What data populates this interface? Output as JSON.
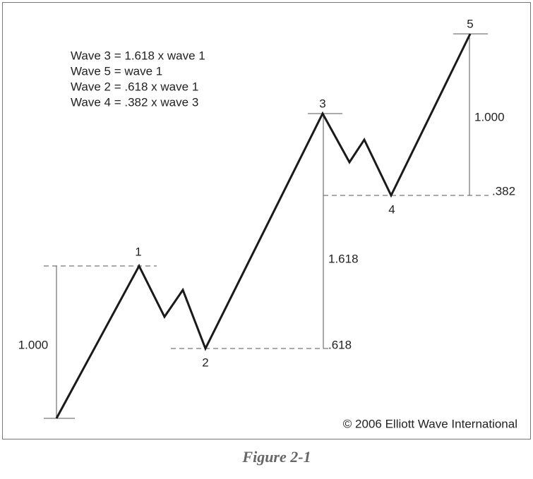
{
  "notes": [
    "Wave 3 = 1.618 x wave 1",
    "Wave 5 = wave 1",
    "Wave 2 = .618 x wave 1",
    "Wave 4 = .382 x wave 3"
  ],
  "wave_labels": [
    "1",
    "2",
    "3",
    "4",
    "5"
  ],
  "ratio_labels": [
    "1.000",
    "1.618",
    ".618",
    "1.000",
    ".382"
  ],
  "copyright": "© 2006 Elliott Wave International",
  "caption": "Figure 2-1"
}
